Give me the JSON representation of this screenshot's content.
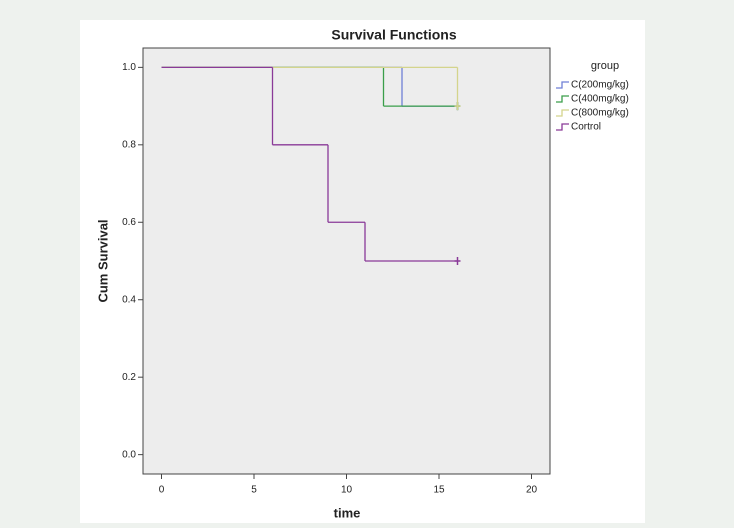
{
  "chart_data": {
    "type": "step",
    "title": "Survival Functions",
    "x_label": "time",
    "y_label": "Cum Survival",
    "legend_title": "group",
    "legend": "right",
    "xlim": [
      -1,
      21
    ],
    "xticks": [
      0,
      5,
      10,
      15,
      20
    ],
    "ylim": [
      -0.05,
      1.05
    ],
    "yticks": [
      {
        "value": 0,
        "label": "0.0"
      },
      {
        "value": 0.2,
        "label": "0.2"
      },
      {
        "value": 0.4,
        "label": "0.4"
      },
      {
        "value": 0.6,
        "label": "0.6"
      },
      {
        "value": 0.8,
        "label": "0.8"
      },
      {
        "value": 1,
        "label": "1.0"
      }
    ],
    "series": [
      {
        "name": "C(200mg/kg)",
        "color": "#6f7fd6",
        "x": [
          0,
          13,
          16
        ],
        "values": [
          1,
          0.9,
          0.9
        ]
      },
      {
        "name": "C(400mg/kg)",
        "color": "#3a9e4a",
        "x": [
          0,
          12,
          16
        ],
        "values": [
          1,
          0.9,
          0.9
        ]
      },
      {
        "name": "C(800mg/kg)",
        "color": "#d4d48c",
        "x": [
          0,
          16
        ],
        "values": [
          1,
          0.9
        ]
      },
      {
        "name": "Cortrol",
        "color": "#8a3a98",
        "x": [
          0,
          6,
          9,
          11,
          16
        ],
        "values": [
          1,
          0.8,
          0.6,
          0.5,
          0.5
        ]
      }
    ]
  }
}
